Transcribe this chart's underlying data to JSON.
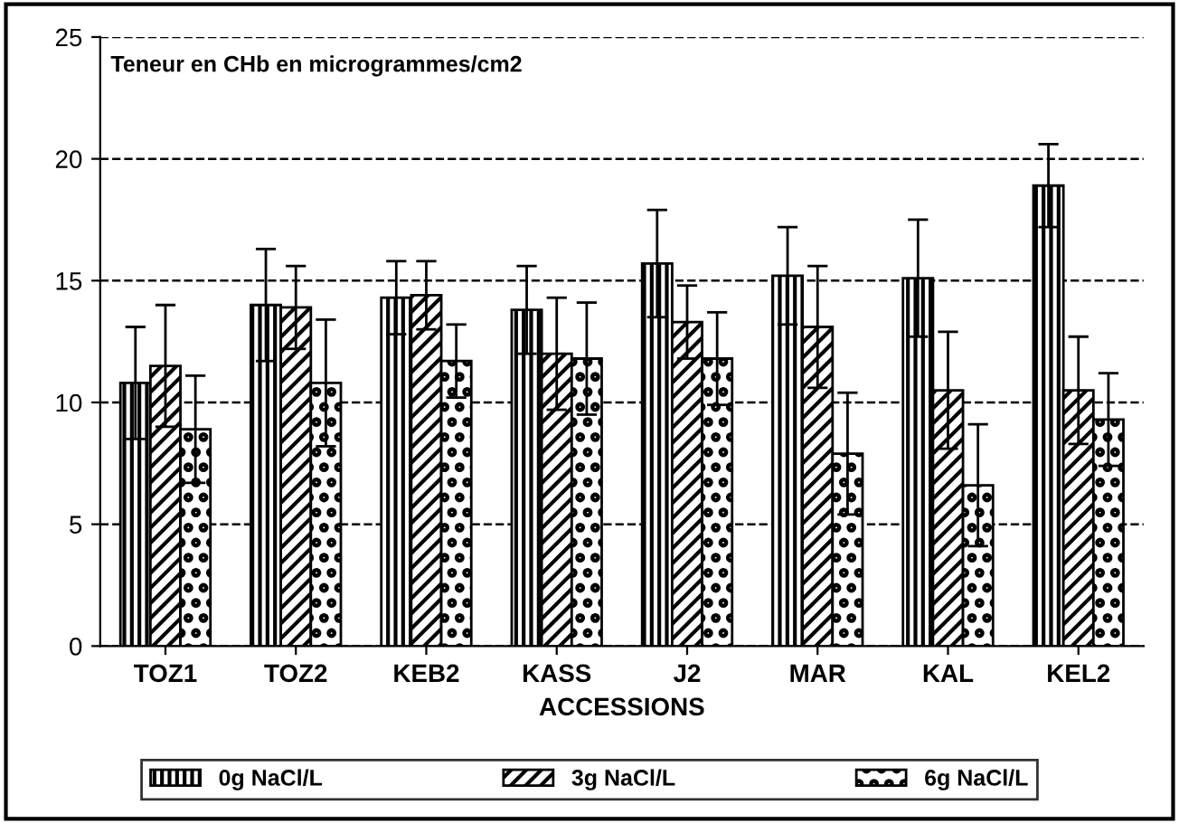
{
  "chart_data": {
    "type": "bar",
    "title": "Teneur en CHb en microgrammes/cm2",
    "xlabel": "ACCESSIONS",
    "categories": [
      "TOZ1",
      "TOZ2",
      "KEB2",
      "KASS",
      "J2",
      "MAR",
      "KAL",
      "KEL2"
    ],
    "series": [
      {
        "name": "0g NaCl/L",
        "color": "#000000",
        "values": [
          10.8,
          14.0,
          14.3,
          13.8,
          15.7,
          15.2,
          15.1,
          18.9
        ],
        "errors": [
          2.3,
          2.3,
          1.5,
          1.8,
          2.2,
          2.0,
          2.4,
          1.7
        ]
      },
      {
        "name": "3g NaCl/L",
        "color": "#000000",
        "values": [
          11.5,
          13.9,
          14.4,
          12.0,
          13.3,
          13.1,
          10.5,
          10.5
        ],
        "errors": [
          2.5,
          1.7,
          1.4,
          2.3,
          1.5,
          2.5,
          2.4,
          2.2
        ]
      },
      {
        "name": "6g NaCl/L",
        "color": "#000000",
        "values": [
          8.9,
          10.8,
          11.7,
          11.8,
          11.8,
          7.9,
          6.6,
          9.3
        ],
        "errors": [
          2.2,
          2.6,
          1.5,
          2.3,
          1.9,
          2.5,
          2.5,
          1.9
        ]
      }
    ],
    "ylim": [
      0,
      25
    ],
    "yticks": [
      0,
      5,
      10,
      15,
      20,
      25
    ],
    "grid": "y",
    "legend": "bottom"
  }
}
